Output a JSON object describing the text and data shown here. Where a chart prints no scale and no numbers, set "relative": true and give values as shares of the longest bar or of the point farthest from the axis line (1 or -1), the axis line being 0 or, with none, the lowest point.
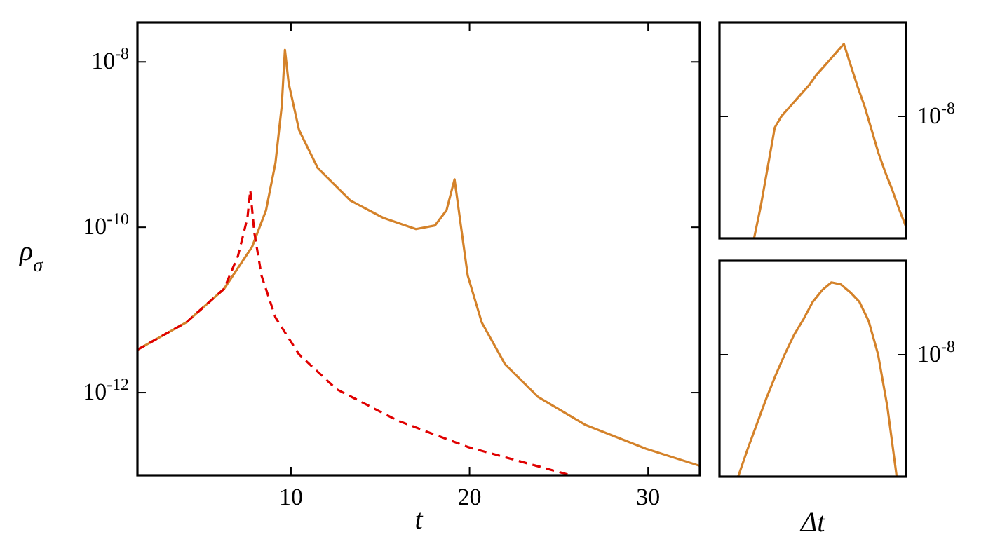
{
  "chart_data": [
    {
      "type": "line",
      "xlabel": "t",
      "ylabel": "ρ$_{σ}$",
      "log": "y",
      "xlim": [
        1.4,
        32.9
      ],
      "ylim": [
        1e-13,
        3e-08
      ],
      "xticks": [
        10,
        20,
        30
      ],
      "yticks": [
        {
          "value": 1e-08,
          "label": "10$^{-8}$"
        },
        {
          "value": 1e-10,
          "label": "10$^{-10}$"
        },
        {
          "value": 1e-12,
          "label": "10$^{-12}$"
        }
      ],
      "grid": false,
      "series": [
        {
          "color": "#d4822a",
          "line_style": "solid",
          "x": [
            1.4,
            4.15,
            6.25,
            7.82,
            8.6,
            9.13,
            9.48,
            9.66,
            9.87,
            10.45,
            11.5,
            13.33,
            15.17,
            17.0,
            18.06,
            18.71,
            19.16,
            19.5,
            19.9,
            20.68,
            21.99,
            23.83,
            26.46,
            29.87,
            32.9
          ],
          "values": [
            3.3e-12,
            7.1e-12,
            1.8e-11,
            5.8e-11,
            1.6e-10,
            6e-10,
            2.9e-09,
            1.4e-08,
            5.5e-09,
            1.5e-09,
            5.2e-10,
            2.1e-10,
            1.3e-10,
            9.5e-11,
            1.05e-10,
            1.6e-10,
            3.8e-10,
            1.1e-10,
            2.6e-11,
            7.1e-12,
            2.2e-12,
            8.9e-13,
            4.1e-13,
            2.1e-13,
            1.3e-13
          ]
        },
        {
          "color": "#e00000",
          "line_style": "dashed",
          "x": [
            1.4,
            4.15,
            6.25,
            7.03,
            7.56,
            7.72,
            7.95,
            8.35,
            9.13,
            10.45,
            12.55,
            15.96,
            19.9,
            25.67
          ],
          "values": [
            3.3e-12,
            7.1e-12,
            1.8e-11,
            4.5e-11,
            1.3e-10,
            2.8e-10,
            8.5e-11,
            2.6e-11,
            8.1e-12,
            2.9e-12,
            1.1e-12,
            4.6e-13,
            2.2e-13,
            1e-13
          ]
        }
      ]
    },
    {
      "type": "line",
      "relative": true,
      "annotations": [
        "10$^{-8}$"
      ],
      "categories": [
        null,
        null,
        null,
        null,
        null,
        null,
        null,
        null,
        null,
        null,
        null,
        null,
        null,
        null,
        null,
        null,
        null,
        null,
        null,
        null,
        null,
        null,
        null,
        null,
        null,
        null,
        null,
        null
      ],
      "series": [
        {
          "color": "#d4822a",
          "values": [
            null,
            null,
            null,
            null,
            null,
            0,
            0.17,
            0.37,
            0.57,
            0.63,
            0.67,
            0.71,
            0.75,
            0.79,
            0.84,
            0.88,
            0.92,
            0.96,
            1,
            0.89,
            0.78,
            0.68,
            0.56,
            0.44,
            0.34,
            0.25,
            0.15,
            0.06
          ]
        }
      ]
    },
    {
      "type": "line",
      "relative": true,
      "xlabel": "Δt",
      "annotations": [
        "10$^{-8}$"
      ],
      "categories": [
        null,
        null,
        null,
        null,
        null,
        null,
        null,
        null,
        null,
        null,
        null,
        null,
        null,
        null,
        null,
        null,
        null,
        null,
        null,
        null,
        null
      ],
      "series": [
        {
          "color": "#d4822a",
          "values": [
            null,
            null,
            0,
            0.14,
            0.27,
            0.4,
            0.52,
            0.63,
            0.73,
            0.81,
            0.9,
            0.96,
            1,
            0.99,
            0.95,
            0.9,
            0.8,
            0.63,
            0.36,
            0,
            null
          ]
        }
      ]
    }
  ]
}
